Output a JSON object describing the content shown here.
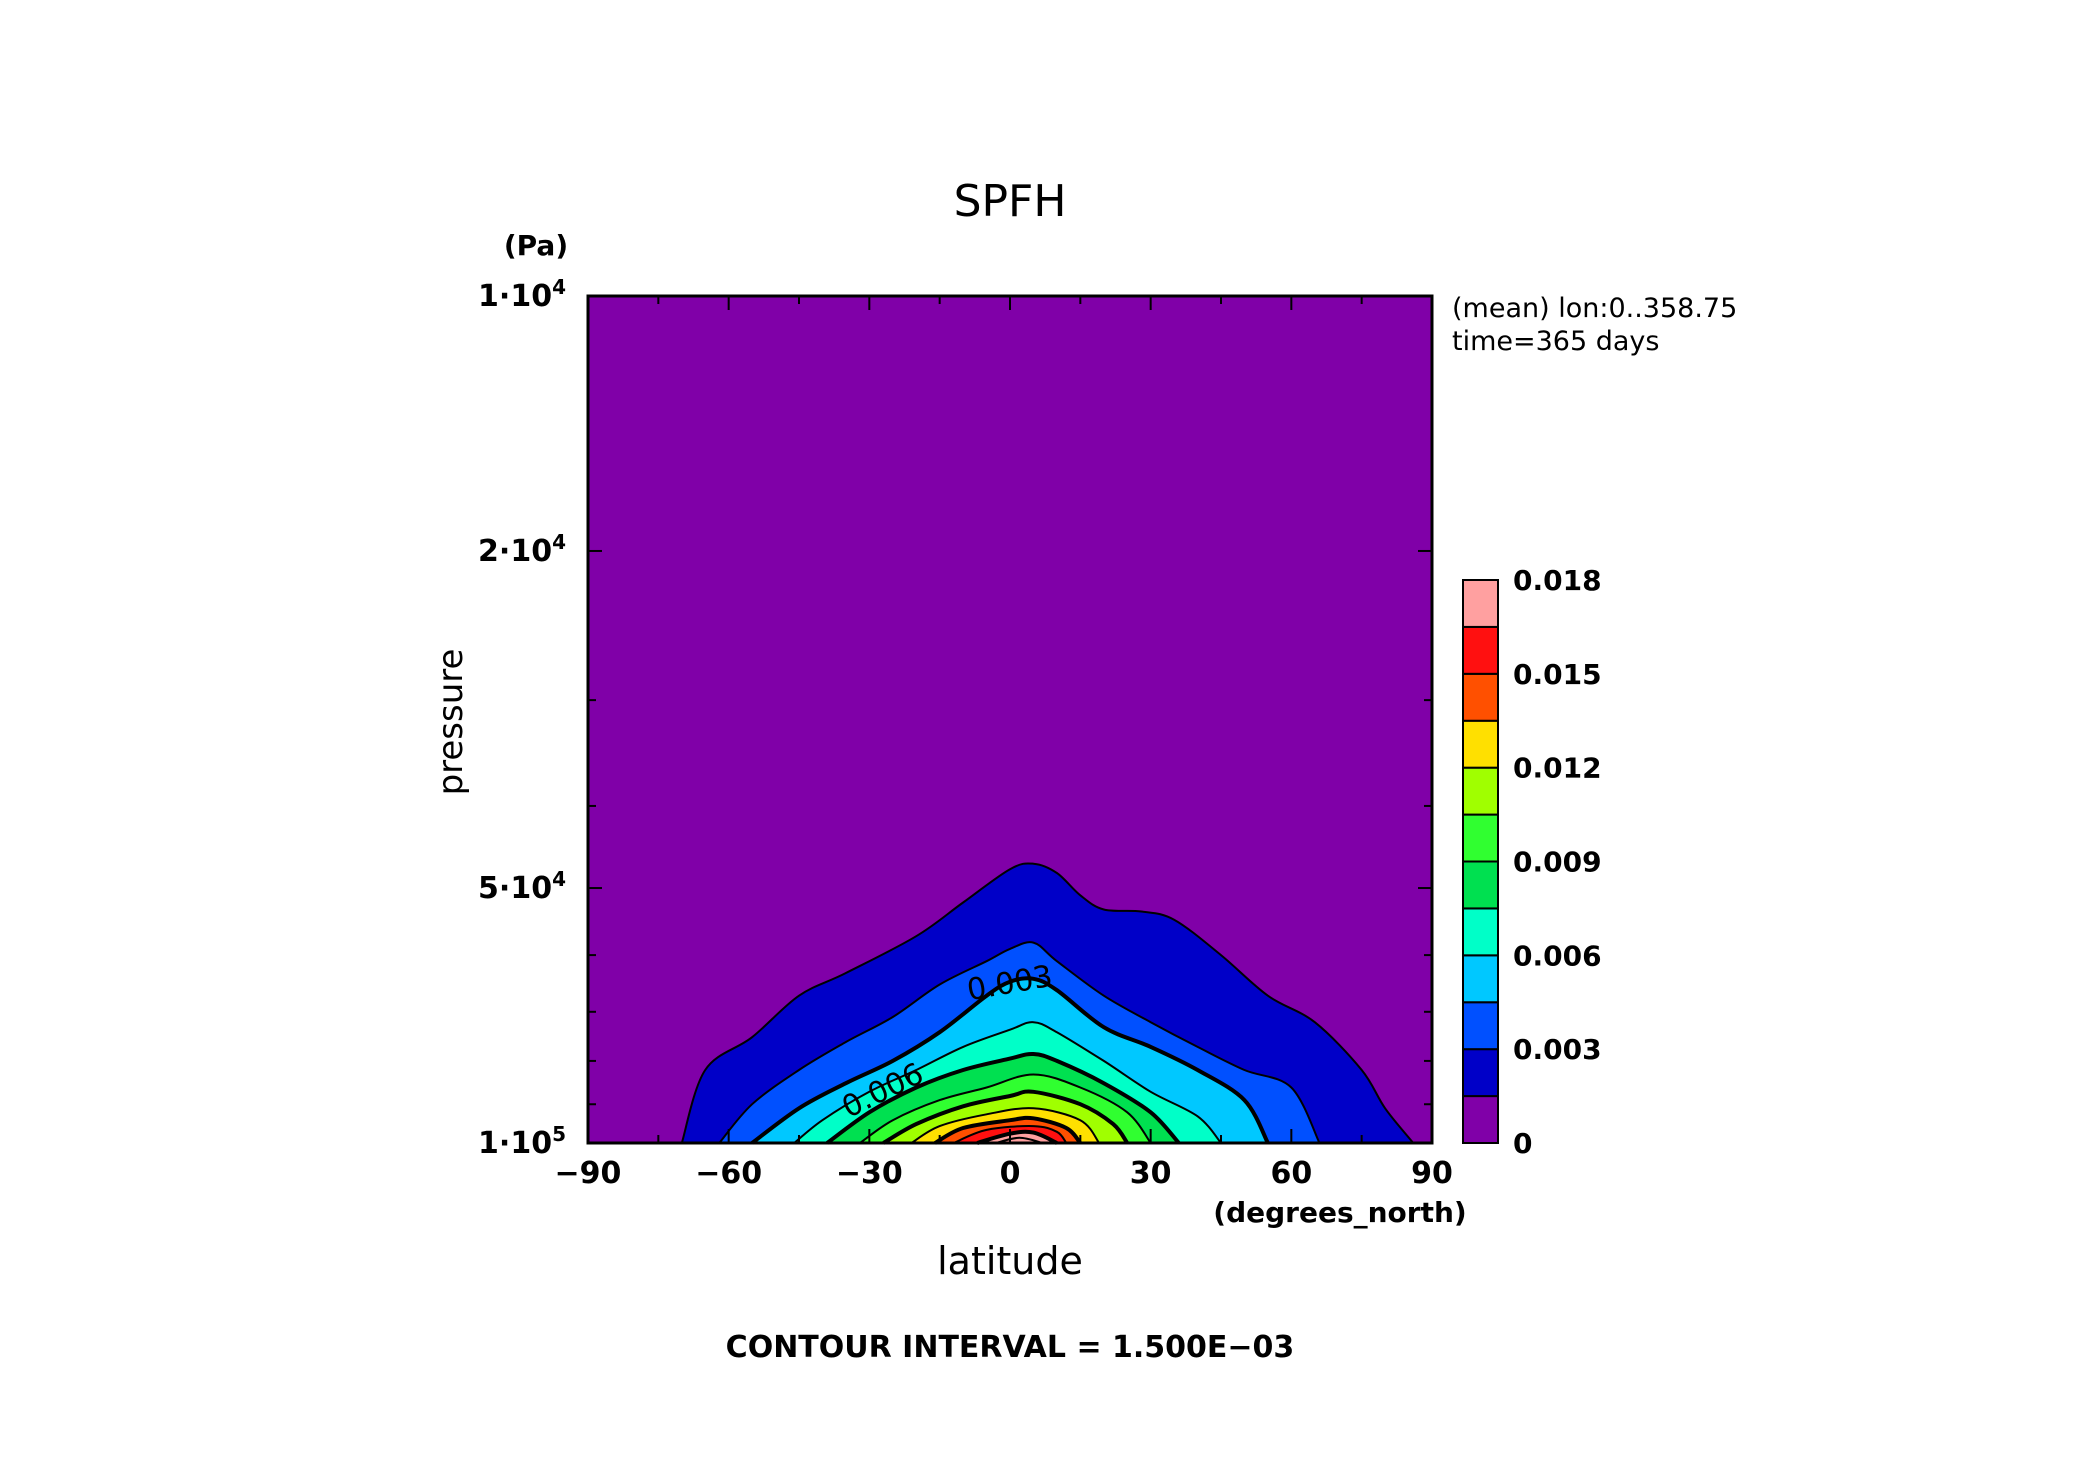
{
  "chart_data": {
    "type": "heatmap",
    "subtype": "filled-contour",
    "title": "SPFH",
    "xlabel": "latitude",
    "x_units": "(degrees_north)",
    "ylabel": "pressure",
    "y_units": "(Pa)",
    "xlim": [
      -90,
      90
    ],
    "ylim": [
      100000,
      10000
    ],
    "y_scale": "log",
    "x_ticks": [
      -90,
      -60,
      -30,
      0,
      30,
      60,
      90
    ],
    "x_tick_labels": [
      "−90",
      "−60",
      "−30",
      "0",
      "30",
      "60",
      "90"
    ],
    "y_ticks": [
      10000,
      20000,
      50000,
      100000
    ],
    "y_tick_labels": [
      {
        "mant": "1·10",
        "exp": "4"
      },
      {
        "mant": "2·10",
        "exp": "4"
      },
      {
        "mant": "5·10",
        "exp": "4"
      },
      {
        "mant": "1·10",
        "exp": "5"
      }
    ],
    "annotation_lines": [
      "(mean) lon:0..358.75",
      "time=365 days"
    ],
    "footer": "CONTOUR INTERVAL = 1.500E−03",
    "contour_interval": 0.0015,
    "contour_labels": [
      {
        "text": "0.003",
        "lat": 0,
        "p": 65000,
        "angle": -10
      },
      {
        "text": "0.006",
        "lat": -27,
        "p": 87000,
        "angle": -26
      }
    ],
    "colorbar": {
      "levels": [
        0,
        0.0015,
        0.003,
        0.0045,
        0.006,
        0.0075,
        0.009,
        0.0105,
        0.012,
        0.0135,
        0.015,
        0.0165,
        0.018
      ],
      "tick_labels": [
        "0",
        "0.003",
        "0.006",
        "0.009",
        "0.012",
        "0.015",
        "0.018"
      ],
      "colors": [
        "#8000a8",
        "#0000c8",
        "#0050ff",
        "#00c8ff",
        "#00ffc8",
        "#00e050",
        "#30ff30",
        "#a0ff00",
        "#ffe000",
        "#ff5000",
        "#ff1010",
        "#ffa0a0"
      ]
    },
    "contours": [
      {
        "level": 0.0,
        "profile": [
          [
            -70,
            100000
          ],
          [
            -65,
            82000
          ],
          [
            -55,
            75000
          ],
          [
            -45,
            67000
          ],
          [
            -35,
            63000
          ],
          [
            -20,
            57000
          ],
          [
            -10,
            52000
          ],
          [
            0,
            47500
          ],
          [
            5,
            46800
          ],
          [
            10,
            48000
          ],
          [
            15,
            51000
          ],
          [
            20,
            53000
          ],
          [
            28,
            53300
          ],
          [
            35,
            54500
          ],
          [
            45,
            60000
          ],
          [
            55,
            67000
          ],
          [
            65,
            72000
          ],
          [
            75,
            82000
          ],
          [
            80,
            91000
          ],
          [
            86,
            100000
          ]
        ]
      },
      {
        "level": 0.0015,
        "profile": [
          [
            -62,
            100000
          ],
          [
            -55,
            90000
          ],
          [
            -45,
            82000
          ],
          [
            -35,
            76000
          ],
          [
            -25,
            71000
          ],
          [
            -15,
            65000
          ],
          [
            -5,
            61000
          ],
          [
            0,
            59000
          ],
          [
            5,
            58000
          ],
          [
            10,
            61000
          ],
          [
            20,
            67000
          ],
          [
            30,
            72000
          ],
          [
            40,
            77000
          ],
          [
            50,
            82000
          ],
          [
            60,
            86000
          ],
          [
            66,
            100000
          ]
        ]
      },
      {
        "level": 0.003,
        "profile": [
          [
            -55,
            100000
          ],
          [
            -45,
            91000
          ],
          [
            -35,
            85000
          ],
          [
            -25,
            80000
          ],
          [
            -15,
            74000
          ],
          [
            -5,
            67000
          ],
          [
            0,
            64500
          ],
          [
            5,
            64000
          ],
          [
            10,
            66000
          ],
          [
            20,
            73000
          ],
          [
            30,
            77000
          ],
          [
            40,
            82000
          ],
          [
            50,
            89000
          ],
          [
            55,
            100000
          ]
        ]
      },
      {
        "level": 0.0045,
        "profile": [
          [
            -46,
            100000
          ],
          [
            -40,
            94000
          ],
          [
            -30,
            87000
          ],
          [
            -20,
            82000
          ],
          [
            -10,
            77000
          ],
          [
            0,
            73500
          ],
          [
            5,
            72000
          ],
          [
            10,
            74000
          ],
          [
            20,
            80000
          ],
          [
            30,
            87000
          ],
          [
            40,
            93000
          ],
          [
            45,
            100000
          ]
        ]
      },
      {
        "level": 0.006,
        "profile": [
          [
            -39,
            100000
          ],
          [
            -30,
            92000
          ],
          [
            -20,
            86000
          ],
          [
            -10,
            82000
          ],
          [
            0,
            79500
          ],
          [
            5,
            78500
          ],
          [
            10,
            80000
          ],
          [
            20,
            85000
          ],
          [
            30,
            92000
          ],
          [
            36,
            100000
          ]
        ]
      },
      {
        "level": 0.0075,
        "profile": [
          [
            -32,
            100000
          ],
          [
            -25,
            94000
          ],
          [
            -15,
            89000
          ],
          [
            -5,
            86000
          ],
          [
            5,
            83000
          ],
          [
            15,
            86000
          ],
          [
            25,
            92000
          ],
          [
            30,
            100000
          ]
        ]
      },
      {
        "level": 0.009,
        "profile": [
          [
            -27,
            100000
          ],
          [
            -20,
            95000
          ],
          [
            -10,
            90500
          ],
          [
            0,
            88000
          ],
          [
            5,
            87000
          ],
          [
            15,
            90000
          ],
          [
            22,
            95000
          ],
          [
            25,
            100000
          ]
        ]
      },
      {
        "level": 0.0105,
        "profile": [
          [
            -21,
            100000
          ],
          [
            -15,
            95500
          ],
          [
            -5,
            92500
          ],
          [
            5,
            91000
          ],
          [
            15,
            94000
          ],
          [
            19,
            100000
          ]
        ]
      },
      {
        "level": 0.012,
        "profile": [
          [
            -16,
            100000
          ],
          [
            -10,
            96000
          ],
          [
            0,
            94000
          ],
          [
            5,
            93500
          ],
          [
            12,
            96000
          ],
          [
            15,
            100000
          ]
        ]
      },
      {
        "level": 0.0135,
        "profile": [
          [
            -12,
            100000
          ],
          [
            -5,
            96500
          ],
          [
            5,
            95500
          ],
          [
            10,
            97000
          ],
          [
            12,
            100000
          ]
        ]
      },
      {
        "level": 0.015,
        "profile": [
          [
            -7,
            100000
          ],
          [
            0,
            97500
          ],
          [
            5,
            97200
          ],
          [
            10,
            100000
          ]
        ]
      },
      {
        "level": 0.0165,
        "profile": [
          [
            -3,
            100000
          ],
          [
            2,
            98600
          ],
          [
            7,
            100000
          ]
        ]
      }
    ],
    "thick_levels": [
      0.003,
      0.006,
      0.009,
      0.012,
      0.015
    ]
  }
}
